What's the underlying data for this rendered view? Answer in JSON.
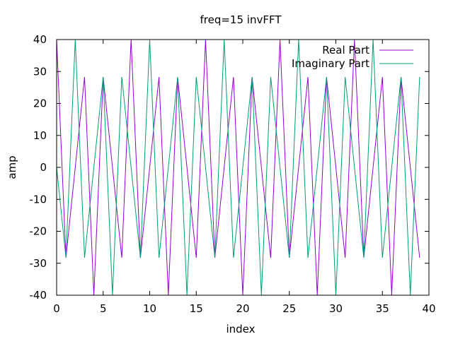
{
  "chart_data": {
    "type": "line",
    "title": "freq=15 invFFT",
    "xlabel": "index",
    "ylabel": "amp",
    "xlim": [
      0,
      40
    ],
    "ylim": [
      -40,
      40
    ],
    "xticks": [
      0,
      5,
      10,
      15,
      20,
      25,
      30,
      35,
      40
    ],
    "yticks": [
      -40,
      -30,
      -20,
      -10,
      0,
      10,
      20,
      30,
      40
    ],
    "grid": false,
    "legend_position": "top-right",
    "x": [
      0,
      1,
      2,
      3,
      4,
      5,
      6,
      7,
      8,
      9,
      10,
      11,
      12,
      13,
      14,
      15,
      16,
      17,
      18,
      19,
      20,
      21,
      22,
      23,
      24,
      25,
      26,
      27,
      28,
      29,
      30,
      31,
      32,
      33,
      34,
      35,
      36,
      37,
      38,
      39
    ],
    "series": [
      {
        "name": "Real Part",
        "color": "#9400d3",
        "values": [
          40,
          -28.28,
          0,
          28.28,
          -40,
          28.28,
          0,
          -28.28,
          40,
          -28.28,
          0,
          28.28,
          -40,
          28.28,
          0,
          -28.28,
          40,
          -28.28,
          0,
          28.28,
          -40,
          28.28,
          0,
          -28.28,
          40,
          -28.28,
          0,
          28.28,
          -40,
          28.28,
          0,
          -28.28,
          40,
          -28.28,
          0,
          28.28,
          -40,
          28.28,
          0,
          -28.28
        ]
      },
      {
        "name": "Imaginary Part",
        "color": "#009e73",
        "values": [
          0,
          -28.28,
          40,
          -28.28,
          0,
          28.28,
          -40,
          28.28,
          0,
          -28.28,
          40,
          -28.28,
          0,
          28.28,
          -40,
          28.28,
          0,
          -28.28,
          40,
          -28.28,
          0,
          28.28,
          -40,
          28.28,
          0,
          -28.28,
          40,
          -28.28,
          0,
          28.28,
          -40,
          28.28,
          0,
          -28.28,
          40,
          -28.28,
          0,
          28.28,
          -40,
          28.28
        ]
      }
    ]
  }
}
